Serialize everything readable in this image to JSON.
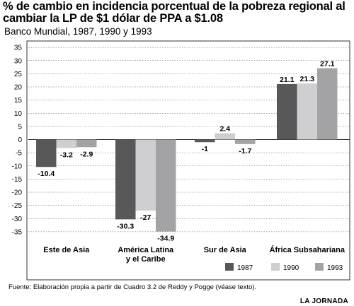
{
  "header": {
    "title": "% de cambio en incidencia porcentual de la pobreza regional al cambiar la LP de $1 dólar de PPA a $1.08",
    "subtitle": "Banco Mundial, 1987, 1990 y 1993"
  },
  "footer": {
    "source": "Fuente: Elaboración propia a partir de Cuadro 3.2 de Reddy y Pogge (véase texto).",
    "brand": "LA JORNADA"
  },
  "colors": {
    "1987": "#58585a",
    "1990": "#cfcfd1",
    "1993": "#a3a3a6",
    "frame": "#333333",
    "grid": "#555555"
  },
  "chart_data": {
    "type": "bar",
    "categories": [
      "Este de Asia",
      "América Latina\ny el Caribe",
      "Sur de Asia",
      "África Subsahariana"
    ],
    "series": [
      {
        "name": "1987",
        "values": [
          -10.4,
          -30.3,
          -1,
          21.1
        ],
        "labels": [
          "-10.4",
          "-30.3",
          "-1",
          "21.1"
        ]
      },
      {
        "name": "1990",
        "values": [
          -3.2,
          -27,
          2.4,
          21.3
        ],
        "labels": [
          "-3.2",
          "-27",
          "2.4",
          "21.3"
        ]
      },
      {
        "name": "1993",
        "values": [
          -2.9,
          -34.9,
          -1.7,
          27.1
        ],
        "labels": [
          "-2.9",
          "-34.9",
          "-1.7",
          "27.1"
        ]
      }
    ],
    "ylim": [
      -37,
      37
    ],
    "yticks": [
      35,
      30,
      25,
      20,
      15,
      10,
      5,
      0,
      -5,
      -10,
      -15,
      -20,
      -25,
      -30,
      -35
    ],
    "grid": true,
    "legend": "bottom-right"
  }
}
